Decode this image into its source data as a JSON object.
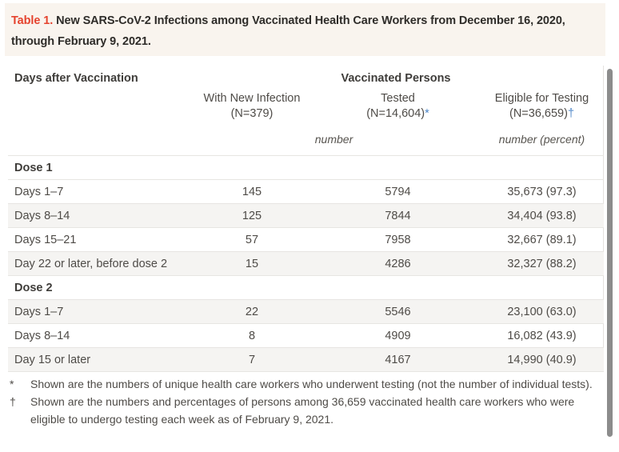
{
  "title": {
    "label": "Table 1.",
    "text": "New SARS-CoV-2 Infections among Vaccinated Health Care Workers from December 16, 2020, through February 9, 2021."
  },
  "table": {
    "col1_header": "Days after Vaccination",
    "group_header": "Vaccinated Persons",
    "columns": [
      {
        "title": "With New Infection",
        "n": "(N=379)",
        "marker": ""
      },
      {
        "title": "Tested",
        "n": "(N=14,604)",
        "marker": "*"
      },
      {
        "title": "Eligible for Testing",
        "n": "(N=36,659)",
        "marker": "†"
      }
    ],
    "unit_row": {
      "number_label": "number",
      "number_percent_label": "number (percent)"
    },
    "sections": [
      {
        "header": "Dose 1",
        "rows": [
          {
            "label": "Days 1–7",
            "infection": "145",
            "tested": "5794",
            "eligible": "35,673 (97.3)"
          },
          {
            "label": "Days 8–14",
            "infection": "125",
            "tested": "7844",
            "eligible": "34,404 (93.8)"
          },
          {
            "label": "Days 15–21",
            "infection": "57",
            "tested": "7958",
            "eligible": "32,667 (89.1)"
          },
          {
            "label": "Day 22 or later, before dose 2",
            "infection": "15",
            "tested": "4286",
            "eligible": "32,327 (88.2)"
          }
        ]
      },
      {
        "header": "Dose 2",
        "rows": [
          {
            "label": "Days 1–7",
            "infection": "22",
            "tested": "5546",
            "eligible": "23,100 (63.0)"
          },
          {
            "label": "Days 8–14",
            "infection": "8",
            "tested": "4909",
            "eligible": "16,082 (43.9)"
          },
          {
            "label": "Day 15 or later",
            "infection": "7",
            "tested": "4167",
            "eligible": "14,990 (40.9)"
          }
        ]
      }
    ]
  },
  "footnotes": [
    {
      "symbol": "*",
      "text": "Shown are the numbers of unique health care workers who underwent testing (not the number of individual tests)."
    },
    {
      "symbol": "†",
      "text": "Shown are the numbers and percentages of persons among 36,659 vaccinated health care workers who were eligible to undergo testing each week as of February 9, 2021."
    }
  ],
  "colors": {
    "accent_red": "#e5432e",
    "marker_blue": "#4d86c8",
    "title_bg": "#f9f4ee",
    "shaded_row": "#f5f4f2",
    "border": "#e7e5e2",
    "scrollbar": "#8c8c8c"
  }
}
